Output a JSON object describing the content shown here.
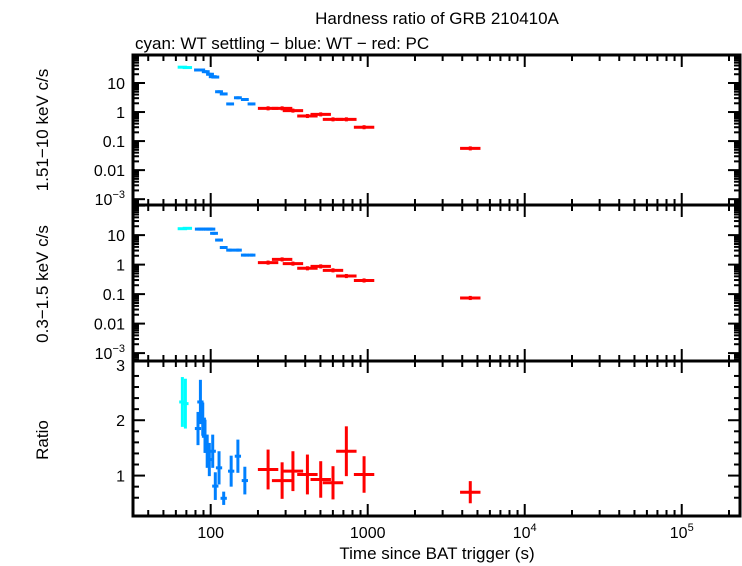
{
  "chart_data": {
    "type": "scatter",
    "title": "Hardness ratio of GRB 210410A",
    "subtitle": "cyan: WT settling − blue: WT − red: PC",
    "xlabel": "Time since BAT trigger (s)",
    "xscale": "log",
    "xlim": [
      32,
      235000
    ],
    "xticks": [
      {
        "value": 100,
        "label": "100"
      },
      {
        "value": 1000,
        "label": "1000"
      },
      {
        "value": 10000,
        "label": "10",
        "exp": "4"
      },
      {
        "value": 100000,
        "label": "10",
        "exp": "5"
      }
    ],
    "colors": {
      "wt_settling": "#00ffff",
      "wt": "#0080ff",
      "pc": "#ff0000"
    },
    "panels": [
      {
        "id": "hard",
        "ylabel": "1.51−10 keV c/s",
        "yscale": "log",
        "ylim": [
          0.00063,
          92
        ],
        "yticks": [
          {
            "value": 10,
            "label": "10"
          },
          {
            "value": 1,
            "label": "1"
          },
          {
            "value": 0.1,
            "label": "0.1"
          },
          {
            "value": 0.01,
            "label": "0.01"
          },
          {
            "value": 0.001,
            "label": "10",
            "exp": "−3"
          }
        ],
        "series": [
          {
            "name": "WT settling",
            "color_key": "wt_settling",
            "xerr_dex": 0.03,
            "yerr_dex": 0.04,
            "x": [
              66,
              71
            ],
            "y": [
              35,
              34
            ]
          },
          {
            "name": "WT",
            "color_key": "wt",
            "xerr_dex": 0.025,
            "yerr_dex": 0.05,
            "x": [
              83,
              87,
              93,
              99,
              103,
              107,
              113,
              121,
              133,
              149,
              165,
              182
            ],
            "y": [
              28,
              28,
              24.5,
              20,
              16.5,
              16,
              5,
              4.2,
              1.9,
              3.1,
              2.7,
              1.9
            ]
          },
          {
            "name": "PC",
            "color_key": "pc",
            "xerr_dex": 0.065,
            "yerr_dex": 0.07,
            "x": [
              232,
              285,
              334,
              413,
              502,
              601,
              731,
              948,
              4500
            ],
            "y": [
              1.34,
              1.34,
              1.12,
              0.73,
              0.83,
              0.56,
              0.56,
              0.3,
              0.056
            ]
          }
        ]
      },
      {
        "id": "soft",
        "ylabel": "0.3−1.5 keV c/s",
        "yscale": "log",
        "ylim": [
          0.00054,
          105
        ],
        "yticks": [
          {
            "value": 10,
            "label": "10"
          },
          {
            "value": 1,
            "label": "1"
          },
          {
            "value": 0.1,
            "label": "0.1"
          },
          {
            "value": 0.01,
            "label": "0.01"
          },
          {
            "value": 0.001,
            "label": "10",
            "exp": "−3"
          }
        ],
        "series": [
          {
            "name": "WT settling",
            "color_key": "wt_settling",
            "xerr_dex": 0.03,
            "yerr_dex": 0.04,
            "x": [
              66,
              71
            ],
            "y": [
              16.5,
              17
            ]
          },
          {
            "name": "WT",
            "color_key": "wt",
            "xerr_dex": 0.025,
            "yerr_dex": 0.05,
            "x": [
              84,
              90,
              96,
              101,
              105,
              113,
              121,
              133,
              149,
              165,
              182
            ],
            "y": [
              16,
              16,
              16,
              16,
              11.5,
              6.8,
              3.8,
              3.1,
              3.1,
              2.1,
              2.1
            ]
          },
          {
            "name": "PC",
            "color_key": "pc",
            "xerr_dex": 0.065,
            "yerr_dex": 0.07,
            "x": [
              232,
              285,
              334,
              413,
              502,
              601,
              731,
              948,
              4500
            ],
            "y": [
              1.17,
              1.5,
              1.08,
              0.75,
              0.87,
              0.64,
              0.41,
              0.29,
              0.074
            ]
          }
        ]
      },
      {
        "id": "ratio",
        "ylabel": "Ratio",
        "yscale": "linear",
        "ylim": [
          0.27,
          3.07
        ],
        "yticks": [
          {
            "value": 3,
            "label": "3"
          },
          {
            "value": 2,
            "label": "2"
          },
          {
            "value": 1,
            "label": "1"
          }
        ],
        "series": [
          {
            "name": "WT settling",
            "color_key": "wt_settling",
            "xerr_dex": 0.02,
            "x": [
              66,
              69
            ],
            "y": [
              2.33,
              2.3
            ],
            "yerr": [
              0.45,
              0.45
            ]
          },
          {
            "name": "WT",
            "color_key": "wt",
            "xerr_dex": 0.02,
            "x": [
              83,
              86,
              89,
              92,
              95,
              98,
              103,
              107,
              113,
              121,
              135,
              149,
              165
            ],
            "y": [
              1.85,
              2.33,
              2.02,
              1.71,
              1.44,
              1.29,
              1.44,
              0.81,
              1.14,
              0.59,
              1.08,
              1.35,
              0.91
            ],
            "yerr": [
              0.3,
              0.4,
              0.3,
              0.3,
              0.3,
              0.3,
              0.3,
              0.25,
              0.3,
              0.12,
              0.28,
              0.3,
              0.25
            ]
          },
          {
            "name": "PC",
            "color_key": "pc",
            "xerr_dex": 0.065,
            "x": [
              232,
              285,
              334,
              413,
              502,
              601,
              731,
              948,
              4500
            ],
            "y": [
              1.11,
              0.91,
              1.08,
              1.02,
              0.93,
              0.87,
              1.44,
              1.02,
              0.7
            ],
            "yerr": [
              0.36,
              0.33,
              0.36,
              0.36,
              0.33,
              0.3,
              0.45,
              0.33,
              0.2
            ]
          }
        ]
      }
    ]
  }
}
